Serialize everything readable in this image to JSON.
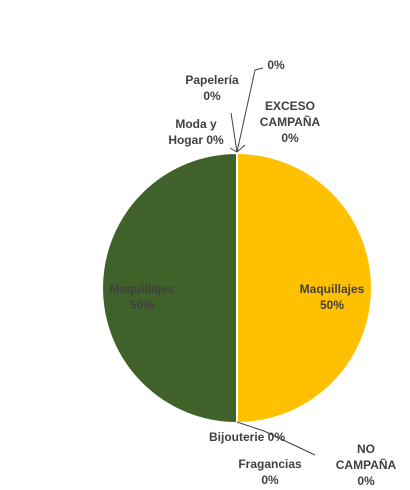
{
  "chart_data": {
    "type": "pie",
    "title": "",
    "slices": [
      {
        "label": "Maquillajes",
        "value": 50,
        "pct": "50%",
        "color": "#FFC000"
      },
      {
        "label": "NO CAMPAÑA",
        "value": 0,
        "pct": "0%",
        "color": "#FFC000"
      },
      {
        "label": "Fragancias",
        "value": 0,
        "pct": "0%",
        "color": "#FFC000"
      },
      {
        "label": "Bijouterie",
        "value": 0,
        "pct": "0%",
        "color": "#FFC000"
      },
      {
        "label": "Maquillajes",
        "value": 50,
        "pct": "50%",
        "color": "#3F622A"
      },
      {
        "label": "Moda y Hogar",
        "value": 0,
        "pct": "0%",
        "color": "#3F622A"
      },
      {
        "label": "Papelería",
        "value": 0,
        "pct": "0%",
        "color": "#3F622A"
      },
      {
        "label": "",
        "value": 0,
        "pct": "0%",
        "color": "#3F622A"
      },
      {
        "label": "EXCESO CAMPAÑA",
        "value": 0,
        "pct": "0%",
        "color": "#FFC000"
      }
    ],
    "legend": "none",
    "label_color": "#404040",
    "slice_border_color": "#FFFFFF"
  }
}
